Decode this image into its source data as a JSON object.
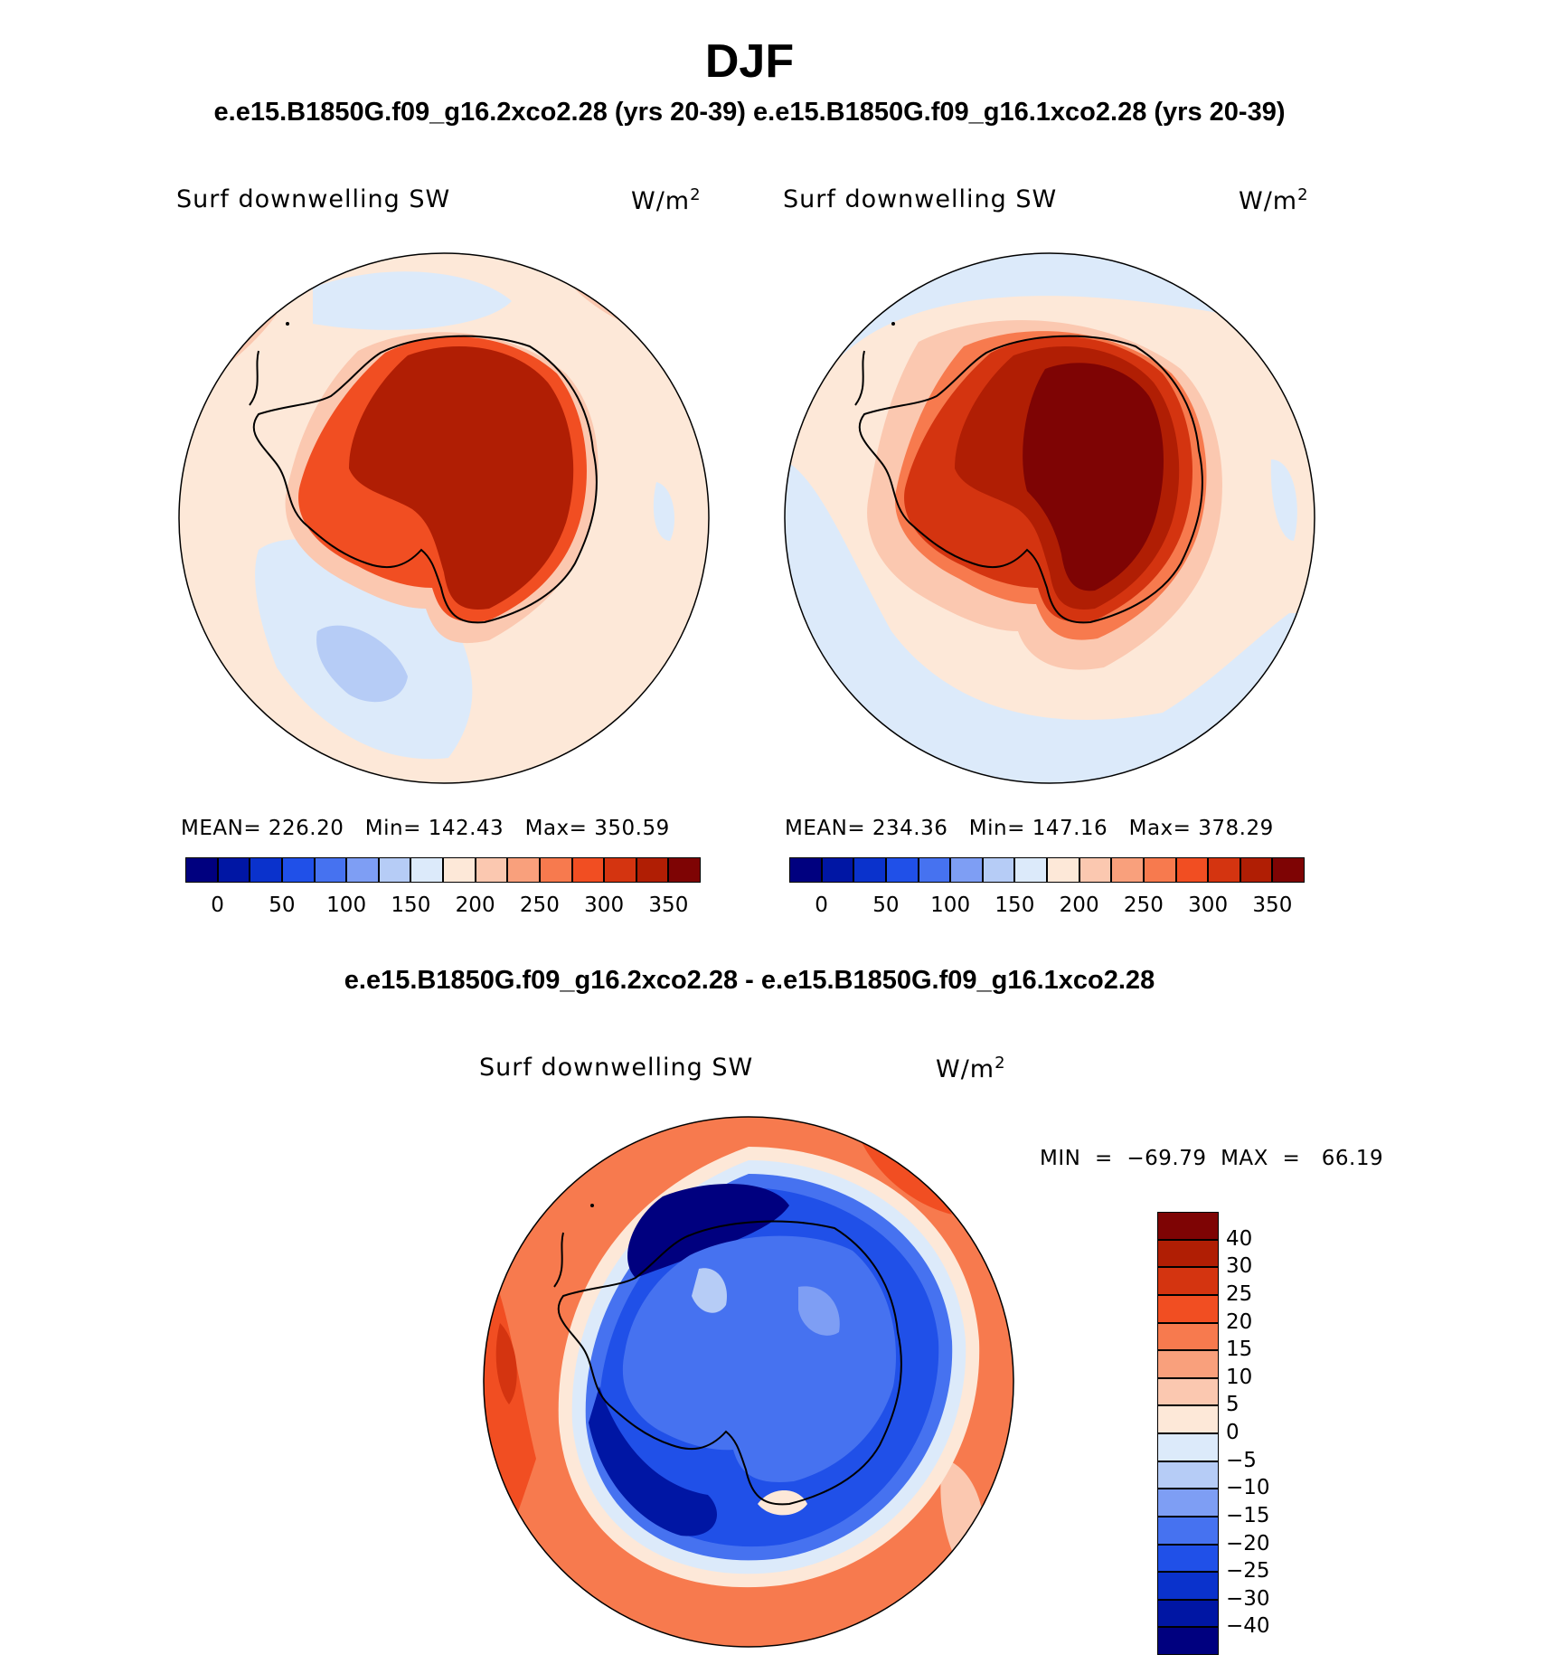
{
  "season_title": "DJF",
  "case_subtitle": "e.e15.B1850G.f09_g16.2xco2.28 (yrs 20-39) e.e15.B1850G.f09_g16.1xco2.28 (yrs 20-39)",
  "diff_title": "e.e15.B1850G.f09_g16.2xco2.28 - e.e15.B1850G.f09_g16.1xco2.28",
  "panels": [
    {
      "variable": "Surf downwelling SW",
      "units": "W/m",
      "units_exp": "2",
      "stats_text": "MEAN= 226.20   Min= 142.43   Max= 350.59",
      "mean": 226.2,
      "min": 142.43,
      "max": 350.59
    },
    {
      "variable": "Surf downwelling SW",
      "units": "W/m",
      "units_exp": "2",
      "stats_text": "MEAN= 234.36   Min= 147.16   Max= 378.29",
      "mean": 234.36,
      "min": 147.16,
      "max": 378.29
    }
  ],
  "diff_panel": {
    "variable": "Surf downwelling SW",
    "units": "W/m",
    "units_exp": "2",
    "minmax_text": "MIN  =  −69.79  MAX  =   66.19",
    "min": -69.79,
    "max": 66.19
  },
  "abs_colorbar": {
    "colors": [
      "#00007f",
      "#0016a4",
      "#0a32cc",
      "#2050e8",
      "#4672f0",
      "#7e9ef4",
      "#b6ccf6",
      "#dceafa",
      "#fde8d8",
      "#fbc8b0",
      "#f9a07c",
      "#f77a4e",
      "#f14e22",
      "#d43410",
      "#b01e04",
      "#7e0404"
    ],
    "tick_labels": [
      "0",
      "50",
      "100",
      "150",
      "200",
      "250",
      "300",
      "350"
    ]
  },
  "diff_colorbar": {
    "colors": [
      "#00007f",
      "#0016a4",
      "#0a32cc",
      "#2050e8",
      "#4672f0",
      "#7e9ef4",
      "#b6ccf6",
      "#dceafa",
      "#fde8d8",
      "#fbc8b0",
      "#f9a07c",
      "#f77a4e",
      "#f14e22",
      "#d43410",
      "#b01e04",
      "#7e0404"
    ],
    "tick_labels": [
      "40",
      "30",
      "25",
      "20",
      "15",
      "10",
      "5",
      "0",
      "−5",
      "−10",
      "−15",
      "−20",
      "−25",
      "−30",
      "−40"
    ]
  },
  "colors": {
    "land_outline": "#000000"
  }
}
